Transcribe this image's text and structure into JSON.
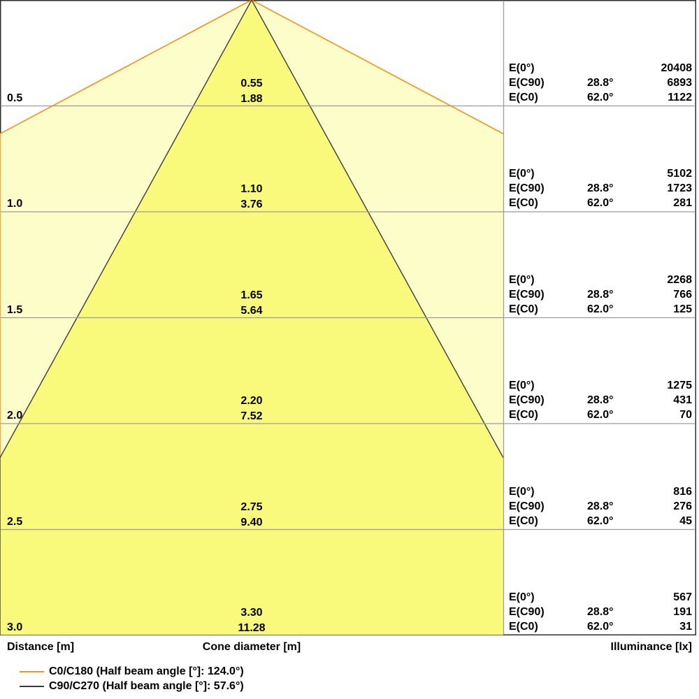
{
  "chart_data": {
    "type": "area",
    "subtype": "photometric-cone-diagram",
    "title": "",
    "distances_m": [
      0.5,
      1.0,
      1.5,
      2.0,
      2.5,
      3.0
    ],
    "series": [
      {
        "name": "C0/C180",
        "half_beam_angle_deg": 124.0,
        "color": "#F7941E",
        "fill": "#FDFDC9",
        "cone_diameters_m": [
          1.88,
          3.76,
          5.64,
          7.52,
          9.4,
          11.28
        ]
      },
      {
        "name": "C90/C270",
        "half_beam_angle_deg": 57.6,
        "color": "#3C3C3C",
        "fill": "#F9F97B",
        "cone_diameters_m": [
          0.55,
          1.1,
          1.65,
          2.2,
          2.75,
          3.3
        ]
      }
    ],
    "illuminance_labels": {
      "e0": "E(0°)",
      "ec90": "E(C90)",
      "ec0": "E(C0)"
    },
    "rows": [
      {
        "distance": "0.5",
        "cone_c90": "0.55",
        "cone_c0": "1.88",
        "e0": "20408",
        "ec90_angle": "28.8°",
        "ec90": "6893",
        "ec0_angle": "62.0°",
        "ec0": "1122"
      },
      {
        "distance": "1.0",
        "cone_c90": "1.10",
        "cone_c0": "3.76",
        "e0": "5102",
        "ec90_angle": "28.8°",
        "ec90": "1723",
        "ec0_angle": "62.0°",
        "ec0": "281"
      },
      {
        "distance": "1.5",
        "cone_c90": "1.65",
        "cone_c0": "5.64",
        "e0": "2268",
        "ec90_angle": "28.8°",
        "ec90": "766",
        "ec0_angle": "62.0°",
        "ec0": "125"
      },
      {
        "distance": "2.0",
        "cone_c90": "2.20",
        "cone_c0": "7.52",
        "e0": "1275",
        "ec90_angle": "28.8°",
        "ec90": "431",
        "ec0_angle": "62.0°",
        "ec0": "70"
      },
      {
        "distance": "2.5",
        "cone_c90": "2.75",
        "cone_c0": "9.40",
        "e0": "816",
        "ec90_angle": "28.8°",
        "ec90": "276",
        "ec0_angle": "62.0°",
        "ec0": "45"
      },
      {
        "distance": "3.0",
        "cone_c90": "3.30",
        "cone_c0": "11.28",
        "e0": "567",
        "ec90_angle": "28.8°",
        "ec90": "191",
        "ec0_angle": "62.0°",
        "ec0": "31"
      }
    ],
    "axis_labels": {
      "distance": "Distance [m]",
      "cone_diameter": "Cone diameter [m]",
      "illuminance": "Illuminance [lx]"
    },
    "legend": [
      {
        "label": "C0/C180 (Half beam angle [°]: 124.0°)",
        "color": "#F7941E"
      },
      {
        "label": "C90/C270 (Half beam angle [°]: 57.6°)",
        "color": "#3C3C3C"
      }
    ],
    "layout_hints": {
      "grid_color": "#9C9C9C",
      "border_color": "#2F2F2F",
      "legend_position": "bottom-left",
      "grid": "horizontal lines at each 0.5 m step"
    }
  }
}
